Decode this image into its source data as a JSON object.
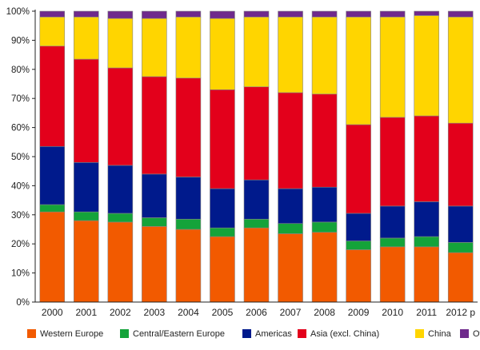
{
  "chart_data": {
    "type": "bar",
    "stacked": true,
    "normalized": true,
    "categories": [
      "2000",
      "2001",
      "2002",
      "2003",
      "2004",
      "2005",
      "2006",
      "2007",
      "2008",
      "2009",
      "2010",
      "2011",
      "2012 p"
    ],
    "y_ticks": [
      "0%",
      "10%",
      "20%",
      "30%",
      "40%",
      "50%",
      "60%",
      "70%",
      "80%",
      "90%",
      "100%"
    ],
    "ylim": [
      0,
      100
    ],
    "grid": false,
    "legend_position": "bottom",
    "series": [
      {
        "name": "Western Europe",
        "color": "#f25a00",
        "values": [
          31,
          28,
          27.5,
          26,
          25,
          22.5,
          25.5,
          23.5,
          24,
          18,
          19,
          19,
          17
        ]
      },
      {
        "name": "Central/Eastern Europe",
        "color": "#14a33a",
        "values": [
          2.5,
          3,
          3,
          3,
          3.5,
          3,
          3,
          3.5,
          3.5,
          3,
          3,
          3.5,
          3.5
        ]
      },
      {
        "name": "Americas",
        "color": "#001a8c",
        "values": [
          20,
          17,
          16.5,
          15,
          14.5,
          13.5,
          13.5,
          12,
          12,
          9.5,
          11,
          12,
          12.5
        ]
      },
      {
        "name": "Asia (excl. China)",
        "color": "#e3001b",
        "values": [
          34.5,
          35.5,
          33.5,
          33.5,
          34,
          34,
          32,
          33,
          32,
          30.5,
          30.5,
          29.5,
          28.5
        ]
      },
      {
        "name": "China",
        "color": "#ffd500",
        "values": [
          10,
          14.5,
          17,
          20,
          21,
          24.5,
          24,
          26,
          26.5,
          37,
          34.5,
          34.5,
          36.5
        ]
      },
      {
        "name": "Others",
        "color": "#6f2a8c",
        "values": [
          2,
          2,
          2.5,
          2.5,
          2,
          2.5,
          2,
          2,
          2,
          2,
          2,
          1.5,
          2
        ]
      }
    ]
  }
}
